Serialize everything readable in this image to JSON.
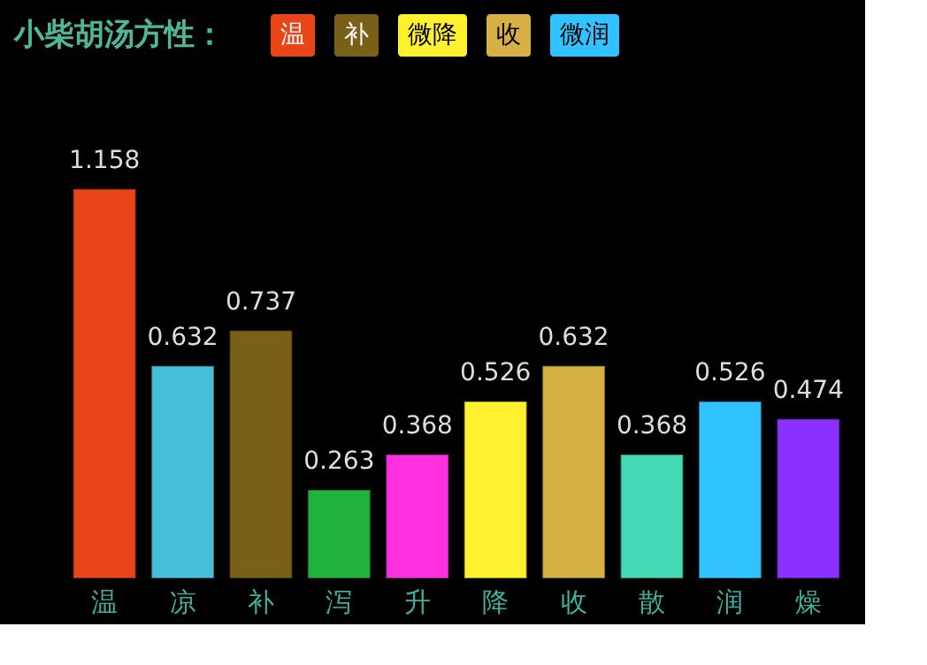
{
  "chart_data": {
    "type": "bar",
    "title": "小柴胡汤方性：",
    "annotations": [
      "温",
      "补",
      "微降",
      "收",
      "微润"
    ],
    "categories": [
      "温",
      "凉",
      "补",
      "泻",
      "升",
      "降",
      "收",
      "散",
      "润",
      "燥"
    ],
    "values": [
      1.158,
      0.632,
      0.737,
      0.263,
      0.368,
      0.526,
      0.632,
      0.368,
      0.526,
      0.474
    ],
    "colors": [
      "#e84619",
      "#48bfd8",
      "#7a5f19",
      "#21b13d",
      "#ff30e0",
      "#fff030",
      "#d6af45",
      "#45d8b6",
      "#30c3ff",
      "#8b30ff"
    ],
    "data_labels": true,
    "tick_labels": "x"
  }
}
